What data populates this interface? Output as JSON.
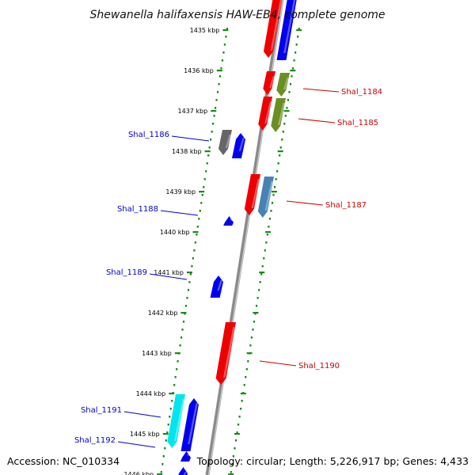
{
  "title": "Shewanella halifaxensis HAW-EB4, complete genome",
  "footer": {
    "accession": "Accession: NC_010334",
    "summary": "Topology: circular; Length: 5,226,917 bp; Genes: 4,433"
  },
  "colors": {
    "backbone": "#8a8a8a",
    "tick": "#1a8a1a",
    "forward_label": "#cc0000",
    "reverse_label": "#0000cc"
  },
  "scale_ticks": [
    "1435 kbp",
    "1436 kbp",
    "1437 kbp",
    "1438 kbp",
    "1439 kbp",
    "1440 kbp",
    "1441 kbp",
    "1442 kbp",
    "1443 kbp",
    "1444 kbp",
    "1445 kbp",
    "1446 kbp"
  ],
  "genes": [
    {
      "label": "Shal_1184",
      "strand": "forward",
      "side": "right"
    },
    {
      "label": "Shal_1185",
      "strand": "forward",
      "side": "right"
    },
    {
      "label": "Shal_1186",
      "strand": "reverse",
      "side": "left"
    },
    {
      "label": "Shal_1187",
      "strand": "forward",
      "side": "right"
    },
    {
      "label": "Shal_1188",
      "strand": "reverse",
      "side": "left"
    },
    {
      "label": "Shal_1189",
      "strand": "reverse",
      "side": "left"
    },
    {
      "label": "Shal_1190",
      "strand": "forward",
      "side": "right"
    },
    {
      "label": "Shal_1191",
      "strand": "reverse",
      "side": "left"
    },
    {
      "label": "Shal_1192",
      "strand": "reverse",
      "side": "left"
    }
  ],
  "feature_colors": {
    "red": "#ee0000",
    "blue": "#0000ee",
    "olive": "#6b8e23",
    "steel": "#4682b4",
    "gray": "#666666",
    "cyan": "#00e5ee"
  }
}
